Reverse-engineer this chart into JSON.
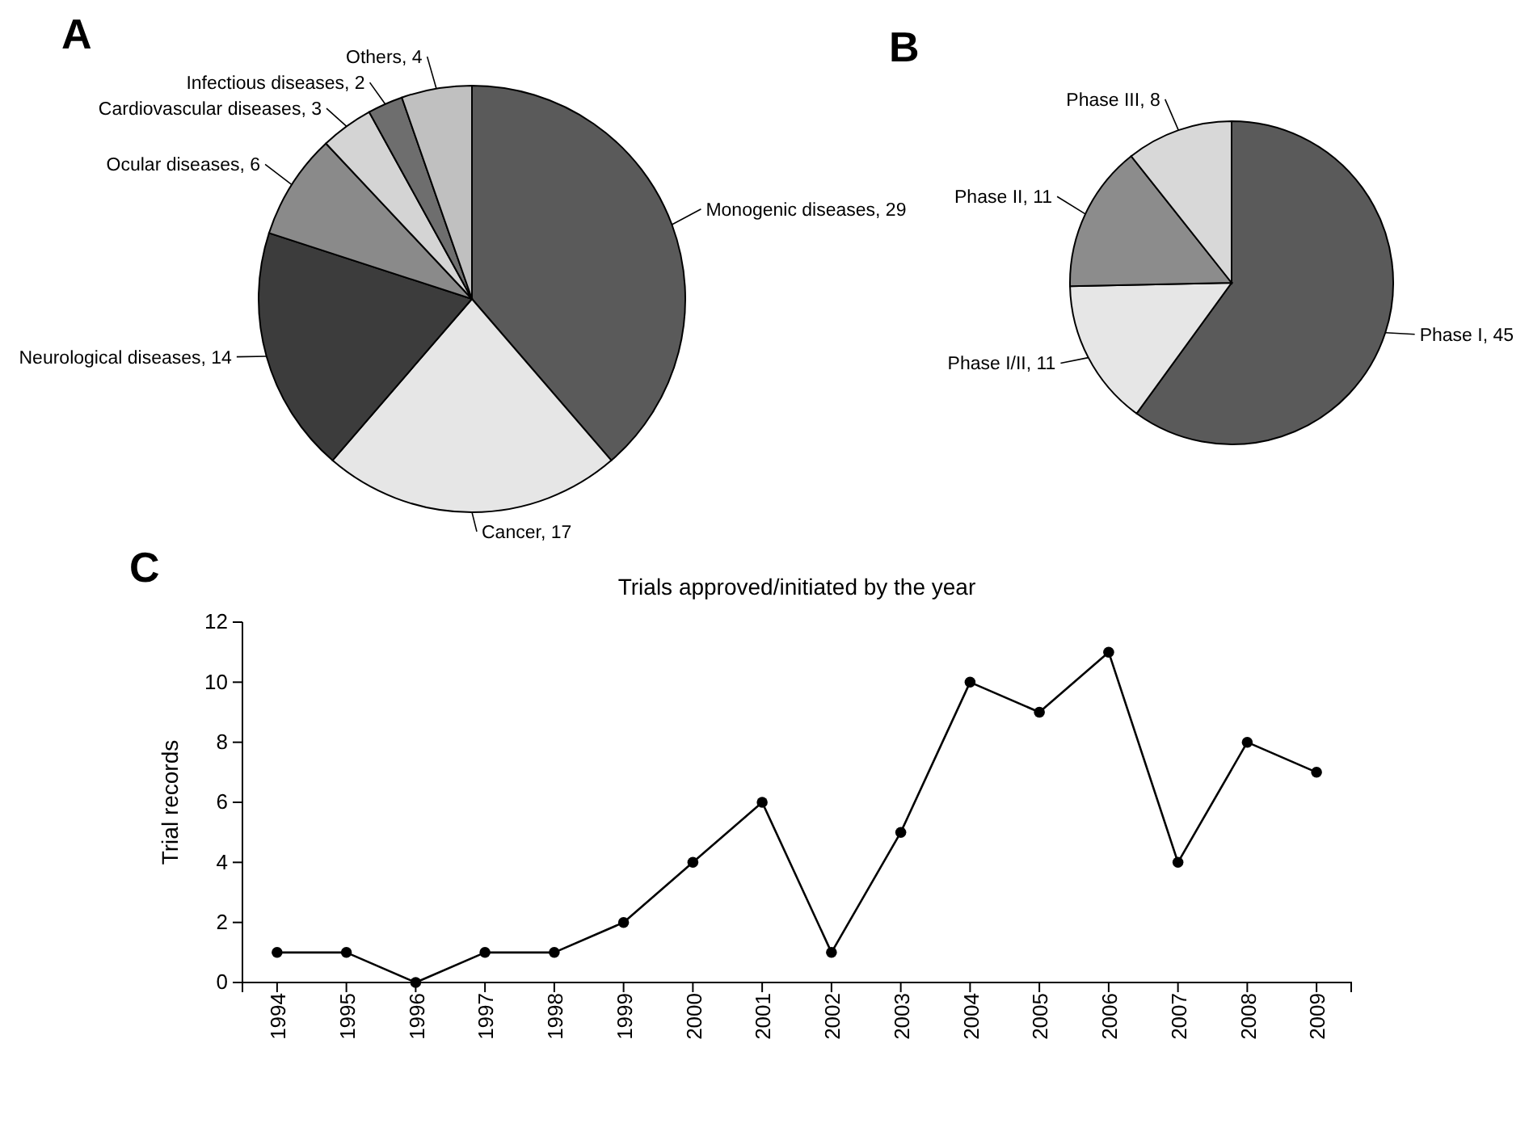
{
  "chart_data": [
    {
      "type": "pie",
      "annotations": [
        "A"
      ],
      "value_labels": [
        ", 29",
        ", 17",
        ", 14",
        ", 6",
        ", 3",
        ", 2",
        ", 4"
      ],
      "categories": [
        "Monogenic diseases",
        "Cancer",
        "Neurological diseases",
        "Ocular diseases",
        "Cardiovascular diseases",
        "Infectious diseases",
        "Others"
      ],
      "values": [
        29,
        17,
        14,
        6,
        3,
        2,
        4
      ],
      "colors": [
        "#5a5a5a",
        "#e6e6e6",
        "#3c3c3c",
        "#8a8a8a",
        "#d4d4d4",
        "#6e6e6e",
        "#c0c0c0"
      ]
    },
    {
      "type": "pie",
      "annotations": [
        "B"
      ],
      "value_labels": [
        ", 45",
        ", 11",
        ", 11",
        ", 8"
      ],
      "categories": [
        "Phase I",
        "Phase I/II",
        "Phase II",
        "Phase III"
      ],
      "values": [
        45,
        11,
        11,
        8
      ],
      "colors": [
        "#5a5a5a",
        "#e6e6e6",
        "#8c8c8c",
        "#d8d8d8"
      ]
    },
    {
      "type": "line",
      "annotations": [
        "C"
      ],
      "title": "Trials approved/initiated by the year",
      "ylabel": "Trial records",
      "categories": [
        "1994",
        "1995",
        "1996",
        "1997",
        "1998",
        "1999",
        "2000",
        "2001",
        "2002",
        "2003",
        "2004",
        "2005",
        "2006",
        "2007",
        "2008",
        "2009"
      ],
      "series": [
        {
          "color": "#000000",
          "values": [
            1,
            1,
            0,
            1,
            1,
            2,
            4,
            6,
            1,
            5,
            10,
            9,
            11,
            4,
            8,
            7
          ]
        }
      ],
      "ylim": [
        0,
        12
      ],
      "yticks": [
        0,
        2,
        4,
        6,
        8,
        10,
        12
      ],
      "marker": "circle",
      "line_style": "solid",
      "grid": false
    }
  ]
}
